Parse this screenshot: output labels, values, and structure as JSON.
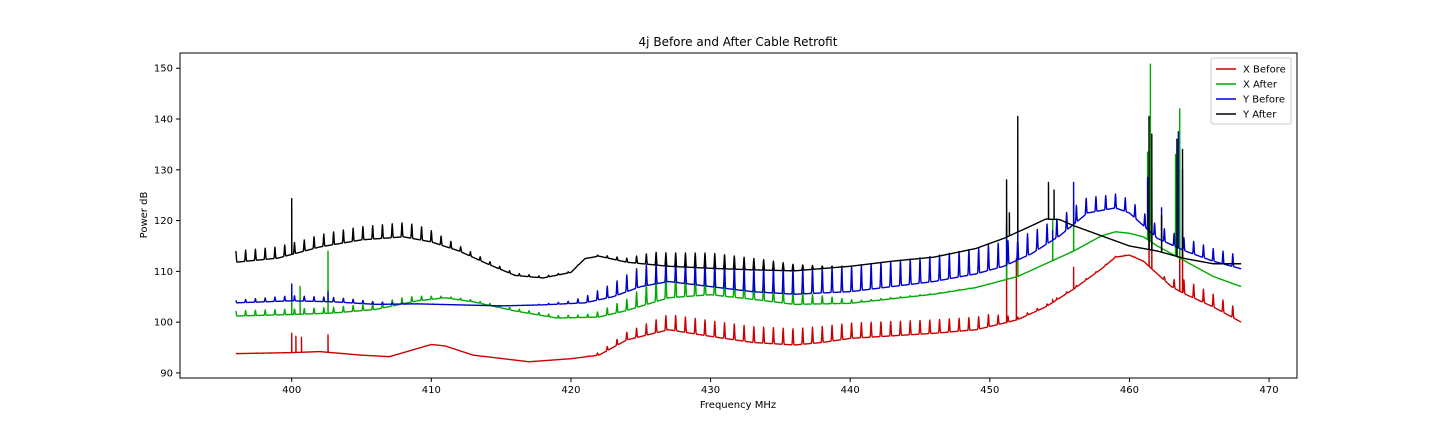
{
  "chart_data": {
    "type": "line",
    "title": "4j Before and After Cable Retrofit",
    "xlabel": "Frequency MHz",
    "ylabel": "Power dB",
    "xlim": [
      392,
      472
    ],
    "ylim": [
      89,
      153
    ],
    "xticks": [
      400,
      410,
      420,
      430,
      440,
      450,
      460,
      470
    ],
    "yticks": [
      90,
      100,
      110,
      120,
      130,
      140,
      150
    ],
    "grid": false,
    "legend_position": "top-right",
    "series": [
      {
        "name": "X Before",
        "color": "#cc0000",
        "baseline": [
          [
            396,
            93.8
          ],
          [
            400,
            94.0
          ],
          [
            402,
            94.2
          ],
          [
            405,
            93.5
          ],
          [
            407,
            93.2
          ],
          [
            409,
            94.8
          ],
          [
            410,
            95.6
          ],
          [
            411,
            95.3
          ],
          [
            413,
            93.5
          ],
          [
            417,
            92.2
          ],
          [
            420,
            92.8
          ],
          [
            422,
            93.5
          ],
          [
            424,
            96.5
          ],
          [
            427,
            98.5
          ],
          [
            430,
            97.2
          ],
          [
            433,
            96.0
          ],
          [
            436,
            95.5
          ],
          [
            438,
            96.0
          ],
          [
            440,
            96.8
          ],
          [
            443,
            97.3
          ],
          [
            446,
            97.8
          ],
          [
            449,
            98.5
          ],
          [
            451,
            99.8
          ],
          [
            452,
            100.5
          ],
          [
            454,
            103.0
          ],
          [
            456,
            106.5
          ],
          [
            458,
            110.5
          ],
          [
            459,
            112.8
          ],
          [
            460,
            113.2
          ],
          [
            461,
            112.0
          ],
          [
            462,
            109.5
          ],
          [
            463,
            107.0
          ],
          [
            464,
            105.5
          ],
          [
            466,
            103.0
          ],
          [
            468,
            100.0
          ]
        ],
        "ripple": [
          [
            421,
            0
          ],
          [
            423,
            1.0
          ],
          [
            427,
            3.0
          ],
          [
            437,
            3.2
          ],
          [
            450,
            2.4
          ],
          [
            452,
            0.5
          ],
          [
            462,
            0
          ],
          [
            464,
            2.8
          ],
          [
            468,
            2.2
          ]
        ],
        "spikes": [
          [
            400,
            97.8
          ],
          [
            400.3,
            97.2
          ],
          [
            400.7,
            97.0
          ],
          [
            402.6,
            97.5
          ],
          [
            451.2,
            112.0
          ],
          [
            451.9,
            112.5
          ],
          [
            454.5,
            104.5
          ],
          [
            456,
            110.8
          ],
          [
            461.4,
            119.0
          ],
          [
            461.6,
            116.5
          ],
          [
            463.6,
            120.0
          ],
          [
            463.8,
            118.5
          ]
        ]
      },
      {
        "name": "X After",
        "color": "#00aa00",
        "baseline": [
          [
            396,
            101.2
          ],
          [
            400,
            101.5
          ],
          [
            403,
            101.8
          ],
          [
            406,
            102.5
          ],
          [
            409,
            104.2
          ],
          [
            411,
            104.8
          ],
          [
            413,
            104.0
          ],
          [
            416,
            102.2
          ],
          [
            419,
            100.8
          ],
          [
            422,
            101.0
          ],
          [
            424,
            102.3
          ],
          [
            427,
            104.8
          ],
          [
            430,
            105.4
          ],
          [
            433,
            104.5
          ],
          [
            436,
            103.5
          ],
          [
            440,
            103.7
          ],
          [
            443,
            104.6
          ],
          [
            446,
            105.5
          ],
          [
            449,
            106.8
          ],
          [
            452,
            109.0
          ],
          [
            454,
            111.5
          ],
          [
            456,
            114.0
          ],
          [
            458,
            117.0
          ],
          [
            459,
            117.8
          ],
          [
            460,
            117.5
          ],
          [
            461,
            116.8
          ],
          [
            462,
            115.0
          ],
          [
            464,
            112.0
          ],
          [
            466,
            109.0
          ],
          [
            468,
            107.0
          ]
        ],
        "ripple": [
          [
            396,
            1.0
          ],
          [
            408,
            1.2
          ],
          [
            411,
            0.3
          ],
          [
            417,
            0.5
          ],
          [
            421,
            0.5
          ],
          [
            424,
            2.2
          ],
          [
            427,
            6.0
          ],
          [
            431,
            5.5
          ],
          [
            437,
            2.0
          ],
          [
            441,
            0.3
          ],
          [
            452,
            0
          ],
          [
            466,
            0
          ],
          [
            468,
            0
          ]
        ],
        "spikes": [
          [
            400,
            107.0
          ],
          [
            400.6,
            107.0
          ],
          [
            402.6,
            114.0
          ],
          [
            451.2,
            120.0
          ],
          [
            452,
            121.0
          ],
          [
            454.5,
            120.0
          ],
          [
            456,
            123.5
          ],
          [
            461.3,
            133.5
          ],
          [
            461.5,
            150.8
          ],
          [
            463.3,
            133.0
          ],
          [
            463.6,
            142.0
          ]
        ]
      },
      {
        "name": "Y Before",
        "color": "#0000cc",
        "baseline": [
          [
            396,
            103.8
          ],
          [
            400,
            104.2
          ],
          [
            403,
            104.0
          ],
          [
            406,
            103.5
          ],
          [
            409,
            103.6
          ],
          [
            412,
            103.4
          ],
          [
            415,
            103.2
          ],
          [
            418,
            103.4
          ],
          [
            421,
            103.8
          ],
          [
            423,
            105.0
          ],
          [
            425,
            107.0
          ],
          [
            427,
            108.0
          ],
          [
            430,
            107.0
          ],
          [
            433,
            106.0
          ],
          [
            436,
            105.5
          ],
          [
            440,
            106.0
          ],
          [
            443,
            107.0
          ],
          [
            446,
            108.0
          ],
          [
            449,
            109.5
          ],
          [
            451,
            111.0
          ],
          [
            453,
            113.5
          ],
          [
            455,
            117.0
          ],
          [
            457,
            121.5
          ],
          [
            459,
            122.5
          ],
          [
            460,
            121.5
          ],
          [
            461,
            119.0
          ],
          [
            462,
            116.5
          ],
          [
            464,
            114.0
          ],
          [
            466,
            112.0
          ],
          [
            468,
            110.5
          ]
        ],
        "ripple": [
          [
            396,
            0.5
          ],
          [
            400,
            1.0
          ],
          [
            404,
            0.8
          ],
          [
            409,
            0
          ],
          [
            417,
            0
          ],
          [
            420,
            0.5
          ],
          [
            425,
            4.0
          ],
          [
            430,
            5.0
          ],
          [
            440,
            5.0
          ],
          [
            450,
            5.0
          ],
          [
            458,
            2.8
          ],
          [
            462,
            2.5
          ],
          [
            468,
            2.5
          ]
        ],
        "spikes": [
          [
            400,
            107.5
          ],
          [
            402.6,
            106.0
          ],
          [
            451.2,
            119.0
          ],
          [
            452,
            121.5
          ],
          [
            454.5,
            118.0
          ],
          [
            456,
            127.5
          ],
          [
            461.3,
            128.5
          ],
          [
            461.6,
            127.0
          ],
          [
            462.3,
            122.5
          ],
          [
            463.5,
            137.5
          ],
          [
            463.8,
            130.0
          ]
        ]
      },
      {
        "name": "Y After",
        "color": "#000000",
        "baseline": [
          [
            396,
            111.8
          ],
          [
            399,
            112.6
          ],
          [
            402,
            114.8
          ],
          [
            405,
            116.2
          ],
          [
            408,
            116.8
          ],
          [
            410,
            115.8
          ],
          [
            412,
            114.0
          ],
          [
            414,
            111.5
          ],
          [
            416,
            109.2
          ],
          [
            418,
            108.7
          ],
          [
            420,
            109.8
          ],
          [
            421,
            112.5
          ],
          [
            422,
            113.0
          ],
          [
            424,
            111.8
          ],
          [
            427,
            111.0
          ],
          [
            430,
            110.6
          ],
          [
            433,
            110.3
          ],
          [
            436,
            110.1
          ],
          [
            440,
            111.0
          ],
          [
            443,
            112.0
          ],
          [
            446,
            112.8
          ],
          [
            449,
            114.5
          ],
          [
            451,
            116.5
          ],
          [
            453,
            119.0
          ],
          [
            454,
            120.3
          ],
          [
            455,
            120.2
          ],
          [
            456,
            119.0
          ],
          [
            458,
            117.0
          ],
          [
            460,
            115.0
          ],
          [
            462,
            114.0
          ],
          [
            464,
            112.5
          ],
          [
            466,
            111.5
          ],
          [
            468,
            111.5
          ]
        ],
        "ripple": [
          [
            396,
            2.2
          ],
          [
            401,
            2.2
          ],
          [
            403,
            2.5
          ],
          [
            409,
            2.8
          ],
          [
            412,
            1.0
          ],
          [
            415,
            0.5
          ],
          [
            420,
            0.2
          ],
          [
            421,
            0
          ],
          [
            424,
            0.8
          ],
          [
            426,
            2.5
          ],
          [
            430,
            3.0
          ],
          [
            434,
            2.0
          ],
          [
            438,
            0.5
          ],
          [
            440,
            0
          ],
          [
            448,
            0
          ],
          [
            468,
            0
          ]
        ],
        "spikes": [
          [
            400,
            124.3
          ],
          [
            451.2,
            128.0
          ],
          [
            451.4,
            121.5
          ],
          [
            452,
            140.5
          ],
          [
            454.2,
            127.5
          ],
          [
            454.6,
            126.0
          ],
          [
            461.4,
            140.5
          ],
          [
            461.6,
            137.0
          ],
          [
            462.3,
            121.0
          ],
          [
            463.4,
            136.0
          ],
          [
            463.8,
            134.0
          ]
        ]
      }
    ]
  }
}
